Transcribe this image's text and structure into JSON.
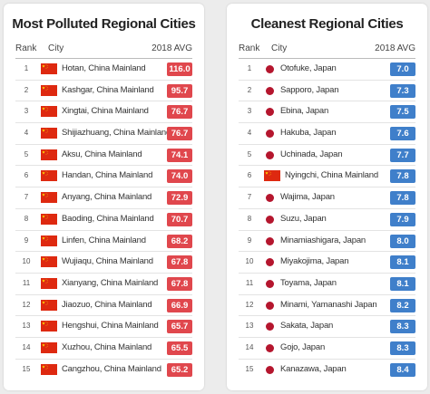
{
  "polluted": {
    "title": "Most Polluted Regional Cities",
    "header": {
      "rank": "Rank",
      "city": "City",
      "avg": "2018 AVG"
    },
    "badge_color": "#e0474d",
    "rows": [
      {
        "rank": "1",
        "city": "Hotan, China Mainland",
        "avg": "116.0",
        "flag": "cn-flag"
      },
      {
        "rank": "2",
        "city": "Kashgar, China Mainland",
        "avg": "95.7",
        "flag": "cn-flag"
      },
      {
        "rank": "3",
        "city": "Xingtai, China Mainland",
        "avg": "76.7",
        "flag": "cn-flag"
      },
      {
        "rank": "4",
        "city": "Shijiazhuang, China Mainland",
        "avg": "76.7",
        "flag": "cn-flag"
      },
      {
        "rank": "5",
        "city": "Aksu, China Mainland",
        "avg": "74.1",
        "flag": "cn-flag"
      },
      {
        "rank": "6",
        "city": "Handan, China Mainland",
        "avg": "74.0",
        "flag": "cn-flag"
      },
      {
        "rank": "7",
        "city": "Anyang, China Mainland",
        "avg": "72.9",
        "flag": "cn-flag"
      },
      {
        "rank": "8",
        "city": "Baoding, China Mainland",
        "avg": "70.7",
        "flag": "cn-flag"
      },
      {
        "rank": "9",
        "city": "Linfen, China Mainland",
        "avg": "68.2",
        "flag": "cn-flag"
      },
      {
        "rank": "10",
        "city": "Wujiaqu, China Mainland",
        "avg": "67.8",
        "flag": "cn-flag"
      },
      {
        "rank": "11",
        "city": "Xianyang, China Mainland",
        "avg": "67.8",
        "flag": "cn-flag"
      },
      {
        "rank": "12",
        "city": "Jiaozuo, China Mainland",
        "avg": "66.9",
        "flag": "cn-flag"
      },
      {
        "rank": "13",
        "city": "Hengshui, China Mainland",
        "avg": "65.7",
        "flag": "cn-flag"
      },
      {
        "rank": "14",
        "city": "Xuzhou, China Mainland",
        "avg": "65.5",
        "flag": "cn-flag"
      },
      {
        "rank": "15",
        "city": "Cangzhou, China Mainland",
        "avg": "65.2",
        "flag": "cn-flag"
      }
    ]
  },
  "cleanest": {
    "title": "Cleanest Regional Cities",
    "header": {
      "rank": "Rank",
      "city": "City",
      "avg": "2018 AVG"
    },
    "badge_color": "#3f7fca",
    "rows": [
      {
        "rank": "1",
        "city": "Otofuke, Japan",
        "avg": "7.0",
        "flag": "jp-flag"
      },
      {
        "rank": "2",
        "city": "Sapporo, Japan",
        "avg": "7.3",
        "flag": "jp-flag"
      },
      {
        "rank": "3",
        "city": "Ebina, Japan",
        "avg": "7.5",
        "flag": "jp-flag"
      },
      {
        "rank": "4",
        "city": "Hakuba, Japan",
        "avg": "7.6",
        "flag": "jp-flag"
      },
      {
        "rank": "5",
        "city": "Uchinada, Japan",
        "avg": "7.7",
        "flag": "jp-flag"
      },
      {
        "rank": "6",
        "city": "Nyingchi, China Mainland",
        "avg": "7.8",
        "flag": "cn-flag"
      },
      {
        "rank": "7",
        "city": "Wajima, Japan",
        "avg": "7.8",
        "flag": "jp-flag"
      },
      {
        "rank": "8",
        "city": "Suzu, Japan",
        "avg": "7.9",
        "flag": "jp-flag"
      },
      {
        "rank": "9",
        "city": "Minamiashigara, Japan",
        "avg": "8.0",
        "flag": "jp-flag"
      },
      {
        "rank": "10",
        "city": "Miyakojima, Japan",
        "avg": "8.1",
        "flag": "jp-flag"
      },
      {
        "rank": "11",
        "city": "Toyama, Japan",
        "avg": "8.1",
        "flag": "jp-flag"
      },
      {
        "rank": "12",
        "city": "Minami, Yamanashi Japan",
        "avg": "8.2",
        "flag": "jp-flag"
      },
      {
        "rank": "13",
        "city": "Sakata, Japan",
        "avg": "8.3",
        "flag": "jp-flag"
      },
      {
        "rank": "14",
        "city": "Gojo, Japan",
        "avg": "8.3",
        "flag": "jp-flag"
      },
      {
        "rank": "15",
        "city": "Kanazawa, Japan",
        "avg": "8.4",
        "flag": "jp-flag"
      }
    ]
  }
}
